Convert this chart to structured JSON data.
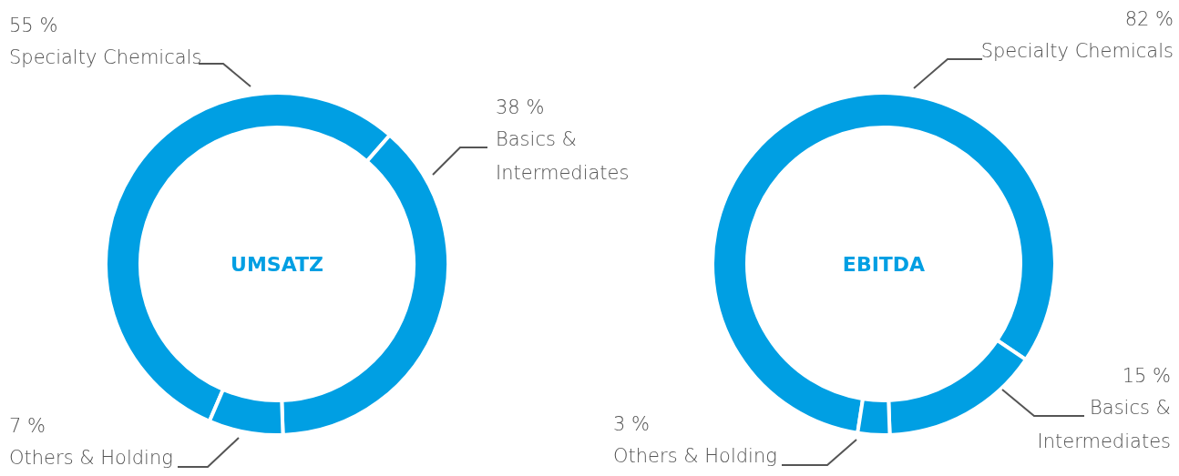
{
  "chart_data": [
    {
      "type": "donut",
      "title": "UMSATZ",
      "categories": [
        "Specialty Chemicals",
        "Basics & Intermediates",
        "Others & Holding"
      ],
      "values": [
        55,
        38,
        7
      ],
      "colors": [
        "#009fe3",
        "#009fe3",
        "#009fe3"
      ],
      "value_labels": [
        "55 %",
        "38 %",
        "7 %"
      ]
    },
    {
      "type": "donut",
      "title": "EBITDA",
      "categories": [
        "Specialty Chemicals",
        "Basics & Intermediates",
        "Others & Holding"
      ],
      "values": [
        82,
        15,
        3
      ],
      "colors": [
        "#009fe3",
        "#009fe3",
        "#009fe3"
      ],
      "value_labels": [
        "82 %",
        "15 %",
        "3 %"
      ]
    }
  ]
}
